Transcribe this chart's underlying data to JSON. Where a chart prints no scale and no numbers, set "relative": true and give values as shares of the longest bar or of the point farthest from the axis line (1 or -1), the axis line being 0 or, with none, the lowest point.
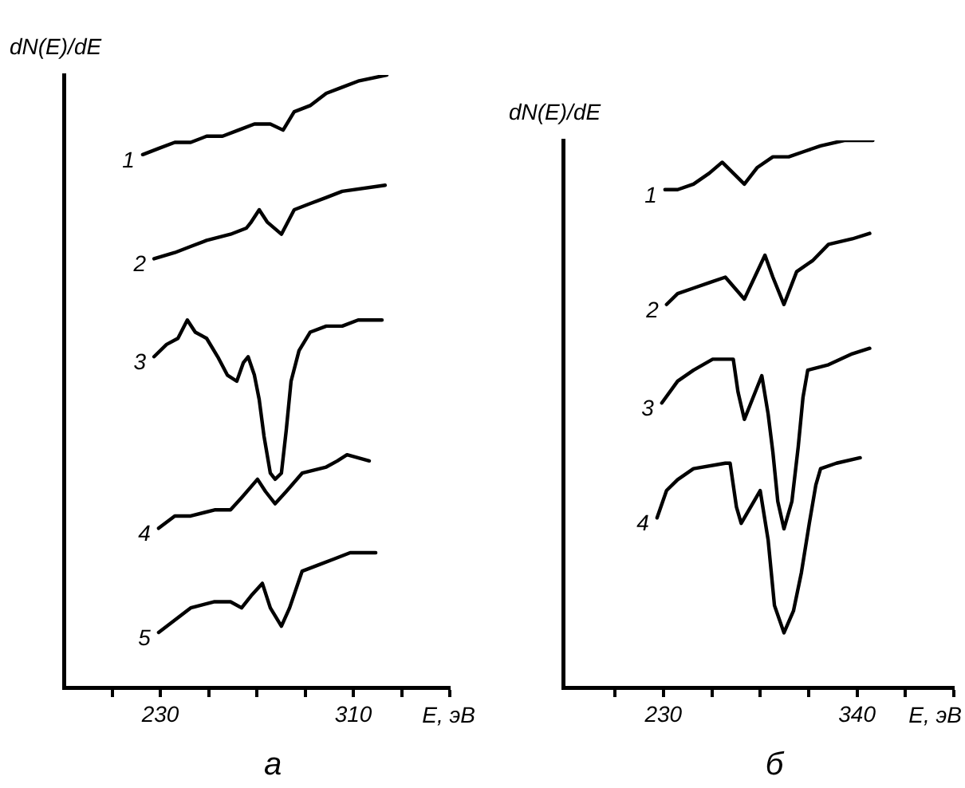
{
  "chart_data": [
    {
      "type": "line",
      "relative": true,
      "title": "а",
      "xlabel": "E, эВ",
      "ylabel": "dN(E)/dE",
      "xlim": [
        190,
        350
      ],
      "xticks": [
        {
          "value": 210,
          "label": null
        },
        230,
        {
          "value": 250,
          "label": null
        },
        {
          "value": 270,
          "label": null
        },
        {
          "value": 290,
          "label": null
        },
        310,
        {
          "value": 330,
          "label": null
        },
        {
          "value": 350,
          "label": null
        }
      ],
      "grid": false,
      "legend": false,
      "marker": "none",
      "line_style": "solid",
      "series": [
        {
          "name": "1",
          "color": "#000000",
          "x": [
            222.7,
            229.3,
            236,
            242.6,
            249.2,
            255.8,
            262.4,
            269,
            272.3,
            275.6,
            280.9,
            285.5,
            292.1,
            298.8,
            305.4,
            312,
            323.9
          ],
          "values": [
            0.87,
            0.88,
            0.89,
            0.89,
            0.9,
            0.9,
            0.91,
            0.92,
            0.92,
            0.92,
            0.91,
            0.94,
            0.95,
            0.97,
            0.98,
            0.99,
            1
          ]
        },
        {
          "name": "2",
          "color": "#000000",
          "x": [
            227.4,
            236,
            242.6,
            249.2,
            259.1,
            265.7,
            267.7,
            271,
            274.3,
            280.2,
            285.5,
            292.1,
            298.8,
            305.4,
            323.2
          ],
          "values": [
            0.7,
            0.71,
            0.72,
            0.73,
            0.74,
            0.75,
            0.76,
            0.78,
            0.76,
            0.74,
            0.78,
            0.79,
            0.8,
            0.81,
            0.82
          ]
        },
        {
          "name": "3",
          "color": "#000000",
          "x": [
            227.4,
            232.6,
            237.3,
            241.2,
            244.5,
            249.2,
            253.8,
            257.8,
            261.7,
            264.4,
            266.4,
            269,
            271,
            273,
            275.6,
            277.6,
            280.2,
            282.2,
            284.2,
            287.5,
            292.1,
            298.8,
            305.4,
            312,
            321.9
          ],
          "values": [
            0.54,
            0.56,
            0.57,
            0.6,
            0.58,
            0.57,
            0.54,
            0.51,
            0.5,
            0.53,
            0.54,
            0.51,
            0.47,
            0.41,
            0.35,
            0.34,
            0.35,
            0.42,
            0.5,
            0.55,
            0.58,
            0.59,
            0.59,
            0.6,
            0.6
          ]
        },
        {
          "name": "4",
          "color": "#000000",
          "x": [
            229.3,
            236,
            242.6,
            252.5,
            259.1,
            263.7,
            270.3,
            273.6,
            277.6,
            282.2,
            288.8,
            298.8,
            303.4,
            307.4,
            316.6
          ],
          "values": [
            0.26,
            0.28,
            0.28,
            0.29,
            0.29,
            0.31,
            0.34,
            0.32,
            0.3,
            0.32,
            0.35,
            0.36,
            0.37,
            0.38,
            0.37
          ]
        },
        {
          "name": "5",
          "color": "#000000",
          "x": [
            229.3,
            236,
            242.6,
            252.5,
            259.1,
            263.7,
            267.7,
            272.3,
            275.6,
            280.2,
            283.6,
            288.8,
            295.5,
            302.1,
            308.7,
            319.3
          ],
          "values": [
            0.09,
            0.11,
            0.13,
            0.14,
            0.14,
            0.13,
            0.15,
            0.17,
            0.13,
            0.1,
            0.13,
            0.19,
            0.2,
            0.21,
            0.22,
            0.22
          ]
        }
      ]
    },
    {
      "type": "line",
      "relative": true,
      "title": "б",
      "xlabel": "E, эВ",
      "ylabel": "dN(E)/dE",
      "xlim": [
        173,
        395
      ],
      "xticks": [
        {
          "value": 202.5,
          "label": null
        },
        230,
        {
          "value": 257.5,
          "label": null
        },
        {
          "value": 285,
          "label": null
        },
        {
          "value": 312.5,
          "label": null
        },
        340,
        {
          "value": 367.5,
          "label": null
        },
        {
          "value": 395,
          "label": null
        }
      ],
      "grid": false,
      "legend": false,
      "marker": "none",
      "line_style": "solid",
      "series": [
        {
          "name": "1",
          "color": "#000000",
          "x": [
            230.9,
            238.1,
            247.1,
            256.1,
            263.4,
            269.7,
            276,
            283.2,
            292.2,
            301.2,
            310.2,
            319.3,
            332.8,
            349
          ],
          "values": [
            0.91,
            0.91,
            0.92,
            0.94,
            0.96,
            0.94,
            0.92,
            0.95,
            0.97,
            0.97,
            0.98,
            0.99,
            1,
            1
          ]
        },
        {
          "name": "2",
          "color": "#000000",
          "x": [
            231.8,
            238.1,
            247.1,
            256.1,
            265.2,
            276,
            287.7,
            292.2,
            298.5,
            305.7,
            314.7,
            323.8,
            337.3,
            347.2
          ],
          "values": [
            0.7,
            0.72,
            0.73,
            0.74,
            0.75,
            0.71,
            0.79,
            0.75,
            0.7,
            0.76,
            0.78,
            0.81,
            0.82,
            0.83
          ]
        },
        {
          "name": "3",
          "color": "#000000",
          "x": [
            229.1,
            238.1,
            247.1,
            258,
            269.7,
            272.4,
            276,
            285.9,
            289.5,
            292.2,
            295,
            298.5,
            303,
            306.6,
            309.3,
            312,
            323.8,
            337.3,
            347.2
          ],
          "values": [
            0.52,
            0.56,
            0.58,
            0.6,
            0.6,
            0.54,
            0.49,
            0.57,
            0.5,
            0.43,
            0.34,
            0.29,
            0.34,
            0.44,
            0.53,
            0.58,
            0.59,
            0.61,
            0.62
          ]
        },
        {
          "name": "4",
          "color": "#000000",
          "x": [
            226.4,
            231.8,
            238.1,
            247.1,
            265.2,
            267.9,
            271.5,
            274.2,
            285,
            289.5,
            293.1,
            298.5,
            303.9,
            308.4,
            312.9,
            316.6,
            319.3,
            328.3,
            341.8
          ],
          "values": [
            0.31,
            0.36,
            0.38,
            0.4,
            0.41,
            0.41,
            0.33,
            0.3,
            0.36,
            0.27,
            0.15,
            0.1,
            0.14,
            0.21,
            0.3,
            0.37,
            0.4,
            0.41,
            0.42
          ]
        }
      ]
    }
  ]
}
